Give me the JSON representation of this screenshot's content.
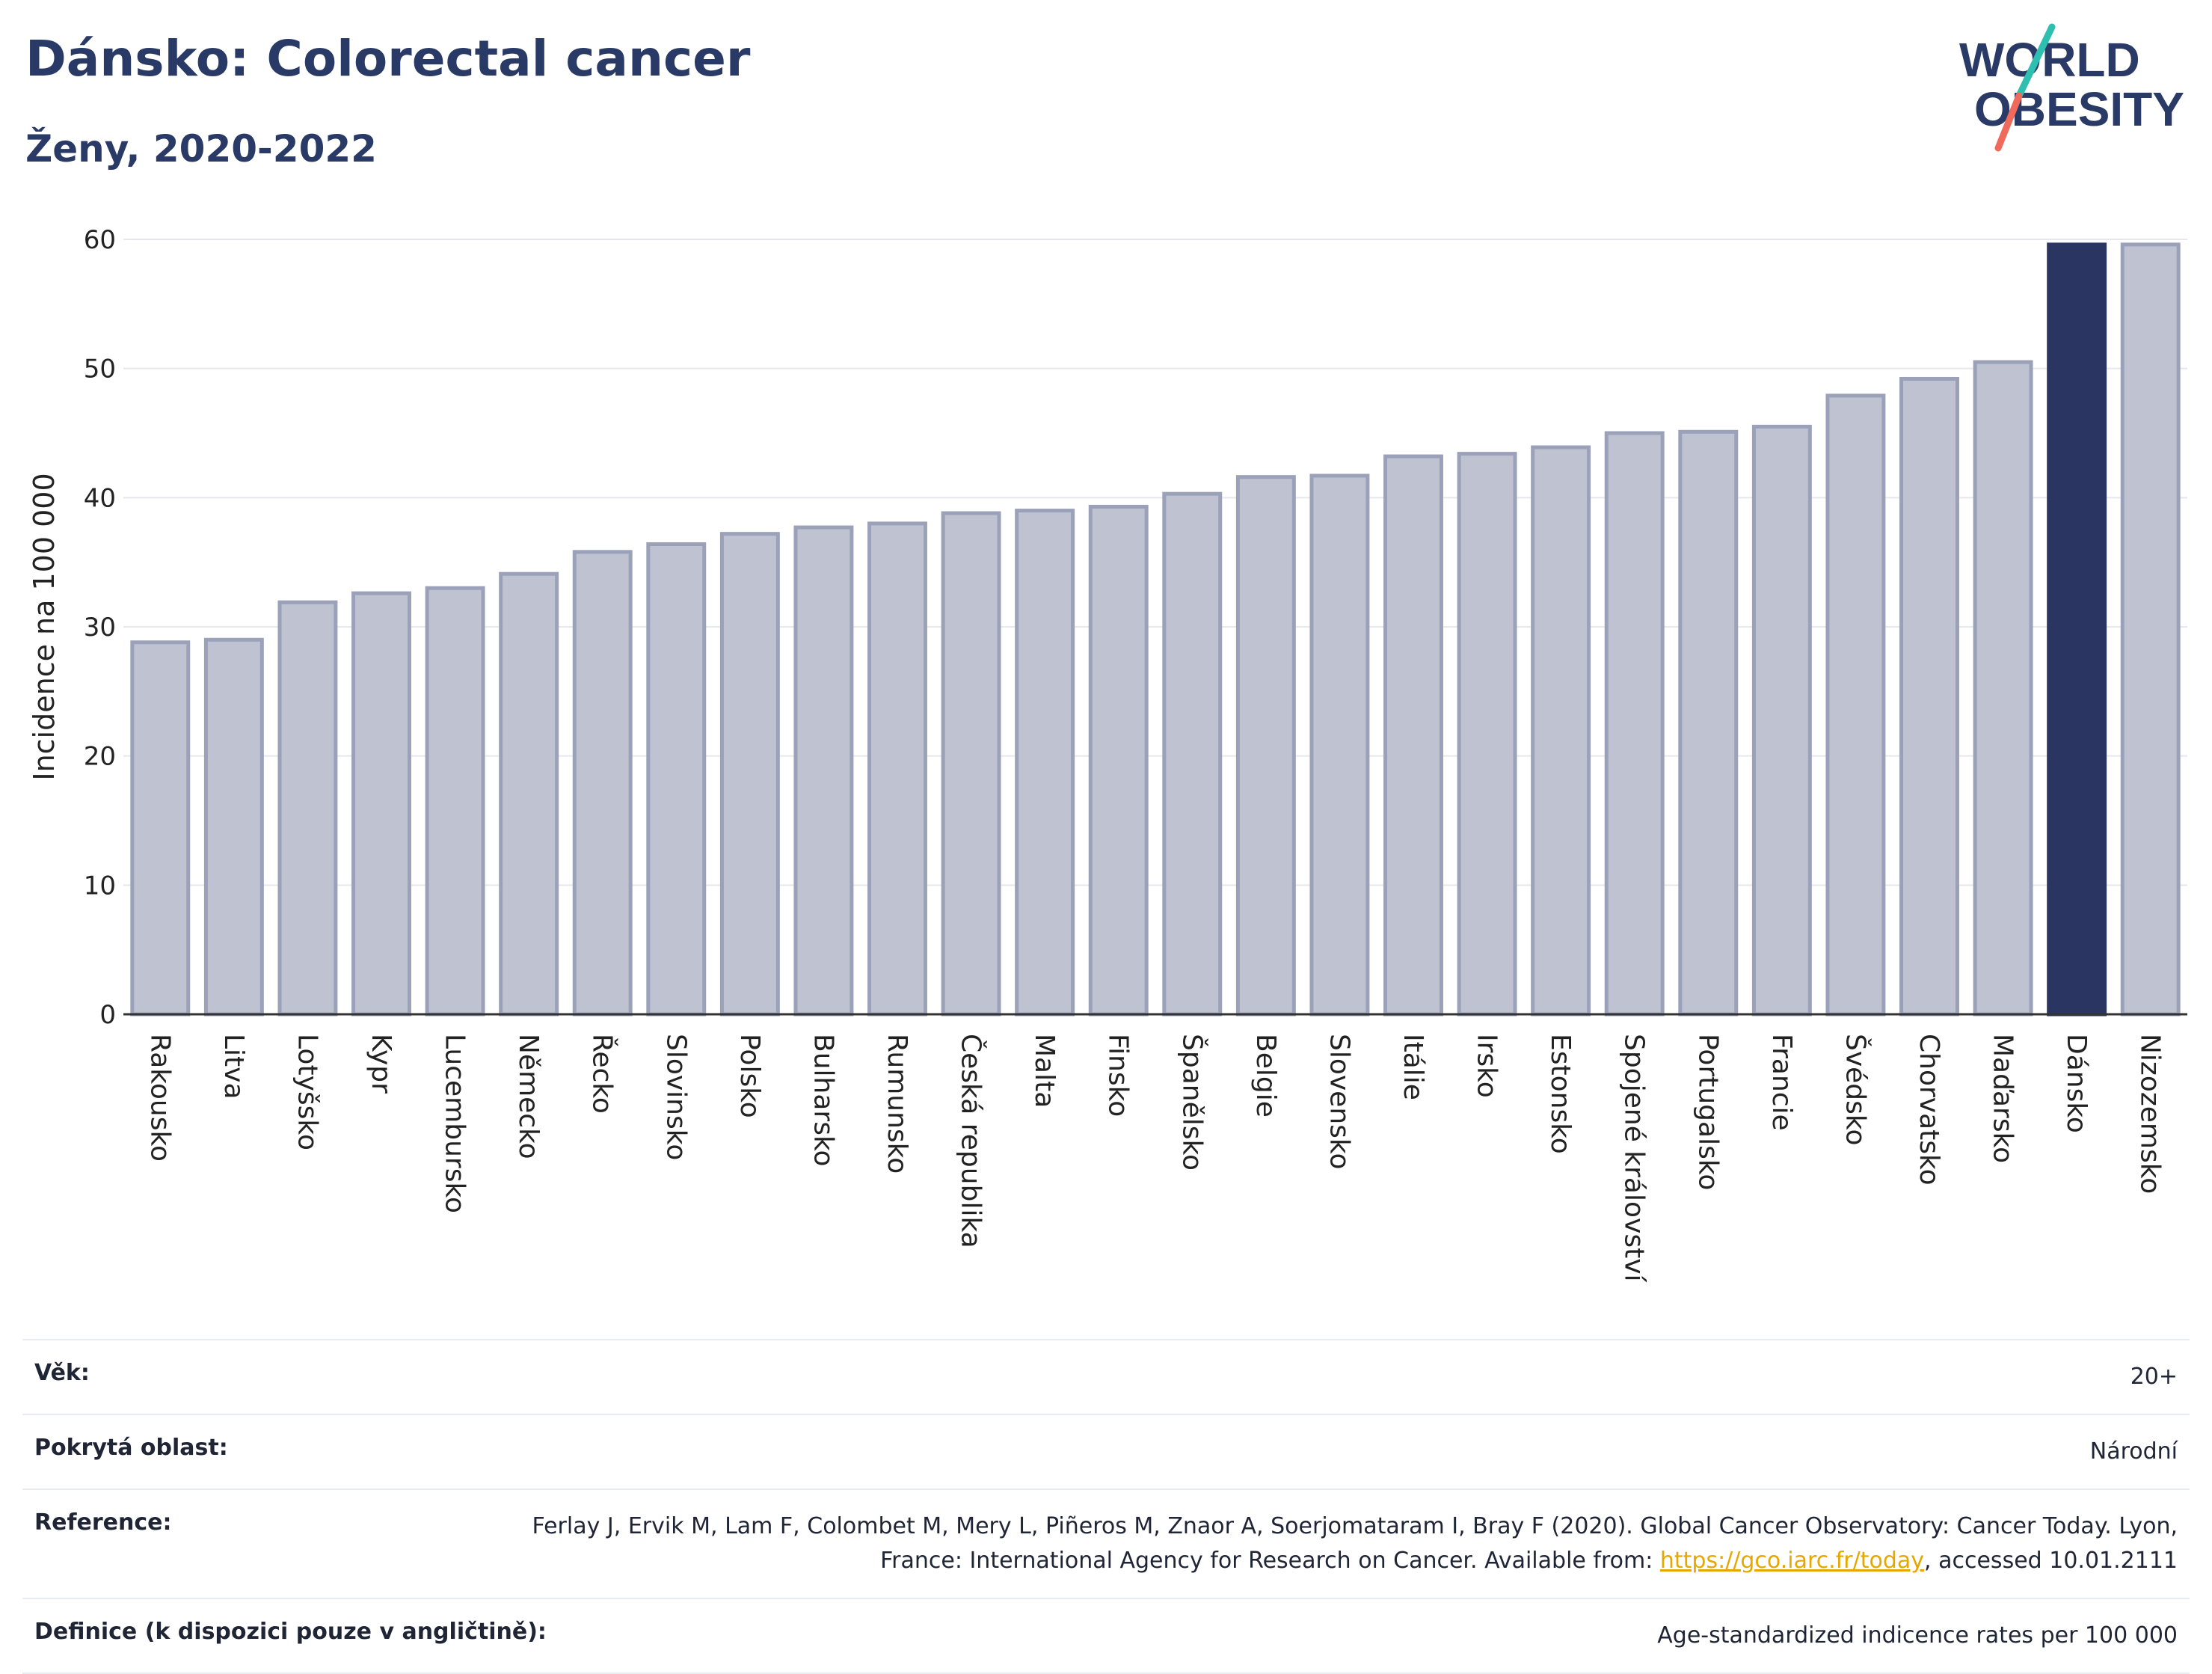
{
  "header": {
    "title": "Dánsko: Colorectal cancer",
    "subtitle": "Ženy, 2020-2022",
    "logo": {
      "line1": "WORLD",
      "line2": "OBESITY"
    }
  },
  "colors": {
    "highlight": "#2a3561",
    "bar_fill": "#bfc3d1",
    "bar_stroke": "#9aa1b8",
    "title": "#2a3a66",
    "link": "#e6a800"
  },
  "chart_data": {
    "type": "bar",
    "title": "Dánsko: Colorectal cancer",
    "subtitle": "Ženy, 2020-2022",
    "ylabel": "Incidence na 100 000",
    "xlabel": "",
    "ylim": [
      0,
      60
    ],
    "yticks": [
      0,
      10,
      20,
      30,
      40,
      50,
      60
    ],
    "grid": true,
    "highlight": "Dánsko",
    "categories": [
      "Rakousko",
      "Litva",
      "Lotyšsko",
      "Kypr",
      "Lucembursko",
      "Německo",
      "Řecko",
      "Slovinsko",
      "Polsko",
      "Bulharsko",
      "Rumunsko",
      "Česká republika",
      "Malta",
      "Finsko",
      "Španělsko",
      "Belgie",
      "Slovensko",
      "Itálie",
      "Irsko",
      "Estonsko",
      "Spojené království",
      "Portugalsko",
      "Francie",
      "Švédsko",
      "Chorvatsko",
      "Maďarsko",
      "Dánsko",
      "Nizozemsko"
    ],
    "values": [
      28.8,
      29.0,
      31.9,
      32.6,
      33.0,
      34.1,
      35.8,
      36.4,
      37.2,
      37.7,
      38.0,
      38.8,
      39.0,
      39.3,
      40.3,
      41.6,
      41.7,
      43.2,
      43.4,
      43.9,
      45.0,
      45.1,
      45.5,
      47.9,
      49.2,
      50.5,
      59.6,
      59.6
    ]
  },
  "meta": {
    "age_label": "Věk:",
    "age_value": "20+",
    "area_label": "Pokrytá oblast:",
    "area_value": "Národní",
    "ref_label": "Reference:",
    "ref_text": "Ferlay J, Ervik M, Lam F, Colombet M, Mery L, Piñeros M, Znaor A, Soerjomataram I, Bray F (2020). Global Cancer Observatory: Cancer Today. Lyon, France: International Agency for Research on Cancer. Available from: ",
    "ref_link": "https://gco.iarc.fr/today",
    "ref_tail": ", accessed 10.01.2111",
    "def_label": "Definice (k dispozici pouze v angličtině):",
    "def_value": "Age-standardized indicence rates per 100 000"
  }
}
